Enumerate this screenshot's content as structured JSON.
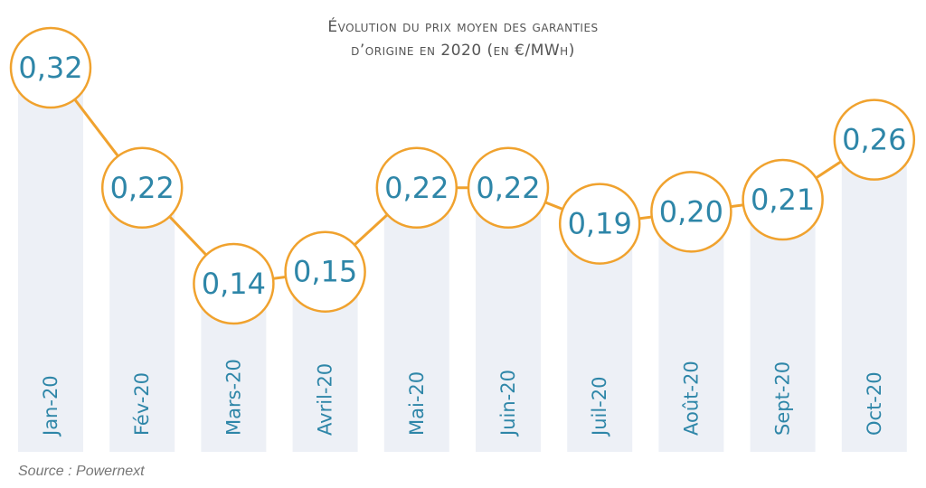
{
  "title": {
    "line1": "Évolution du prix moyen des garanties",
    "line2": "d’origine en 2020 (en €/MWh)"
  },
  "source": "Source : Powernext",
  "colors": {
    "bar": "#edf0f6",
    "line": "#f0a22e",
    "circle_stroke": "#f0a22e",
    "value_text": "#2e86a8",
    "label_text": "#2e86a8",
    "title_text": "#555555",
    "source_text": "#777777"
  },
  "chart_data": {
    "type": "bar",
    "overlay": "line",
    "title": "Évolution du prix moyen des garanties d’origine en 2020 (en €/MWh)",
    "xlabel": "",
    "ylabel": "€/MWh",
    "categories": [
      "Jan-20",
      "Fév-20",
      "Mars-20",
      "Avril-20",
      "Mai-20",
      "Juin-20",
      "Juil-20",
      "Août-20",
      "Sept-20",
      "Oct-20"
    ],
    "values": [
      0.32,
      0.22,
      0.14,
      0.15,
      0.22,
      0.22,
      0.19,
      0.2,
      0.21,
      0.26
    ],
    "value_labels": [
      "0,32",
      "0,22",
      "0,14",
      "0,15",
      "0,22",
      "0,22",
      "0,19",
      "0,20",
      "0,21",
      "0,26"
    ],
    "grid": false,
    "legend": "none",
    "source": "Source : Powernext"
  }
}
